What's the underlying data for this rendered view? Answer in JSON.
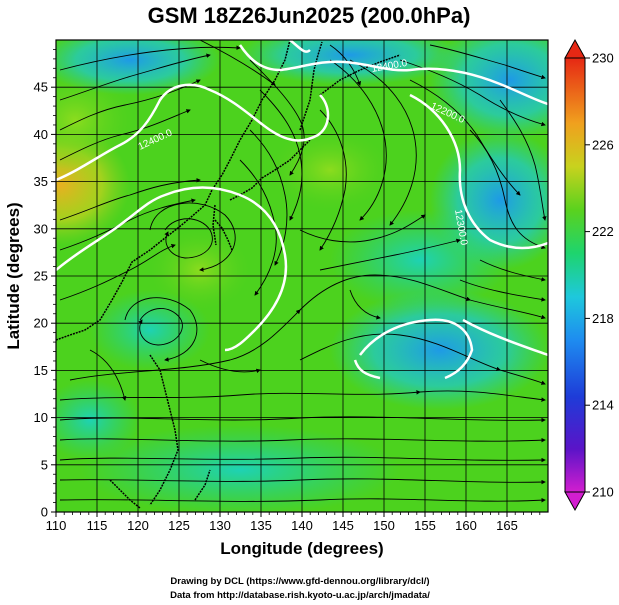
{
  "title": "GSM 18Z26Jun2025 (200.0hPa)",
  "map": {
    "xlabel": "Longitude (degrees)",
    "ylabel": "Latitude  (degrees)",
    "xlim": [
      110,
      170
    ],
    "ylim": [
      0,
      50
    ],
    "xticks": [
      110,
      115,
      120,
      125,
      130,
      135,
      140,
      145,
      150,
      155,
      160,
      165
    ],
    "yticks": [
      0,
      5,
      10,
      15,
      20,
      25,
      30,
      35,
      40,
      45
    ],
    "xtick_labels": [
      "110",
      "115",
      "120",
      "125",
      "130",
      "135",
      "140",
      "145",
      "150",
      "155",
      "160",
      "165"
    ],
    "ytick_labels": [
      "0",
      "5",
      "10",
      "15",
      "20",
      "25",
      "30",
      "35",
      "40",
      "45"
    ],
    "grid": true,
    "contour_labels": [
      "12400.0",
      "12200.0",
      "12300.0",
      "12400.0"
    ]
  },
  "colorbar": {
    "min": 210,
    "max": 230,
    "tick_labels": [
      "230",
      "226",
      "222",
      "218",
      "214",
      "210"
    ]
  },
  "credits": {
    "line1": "Drawing by DCL (https://www.gfd-dennou.org/library/dcl/)",
    "line2": "Data from http://database.rish.kyoto-u.ac.jp/arch/jmadata/"
  }
}
